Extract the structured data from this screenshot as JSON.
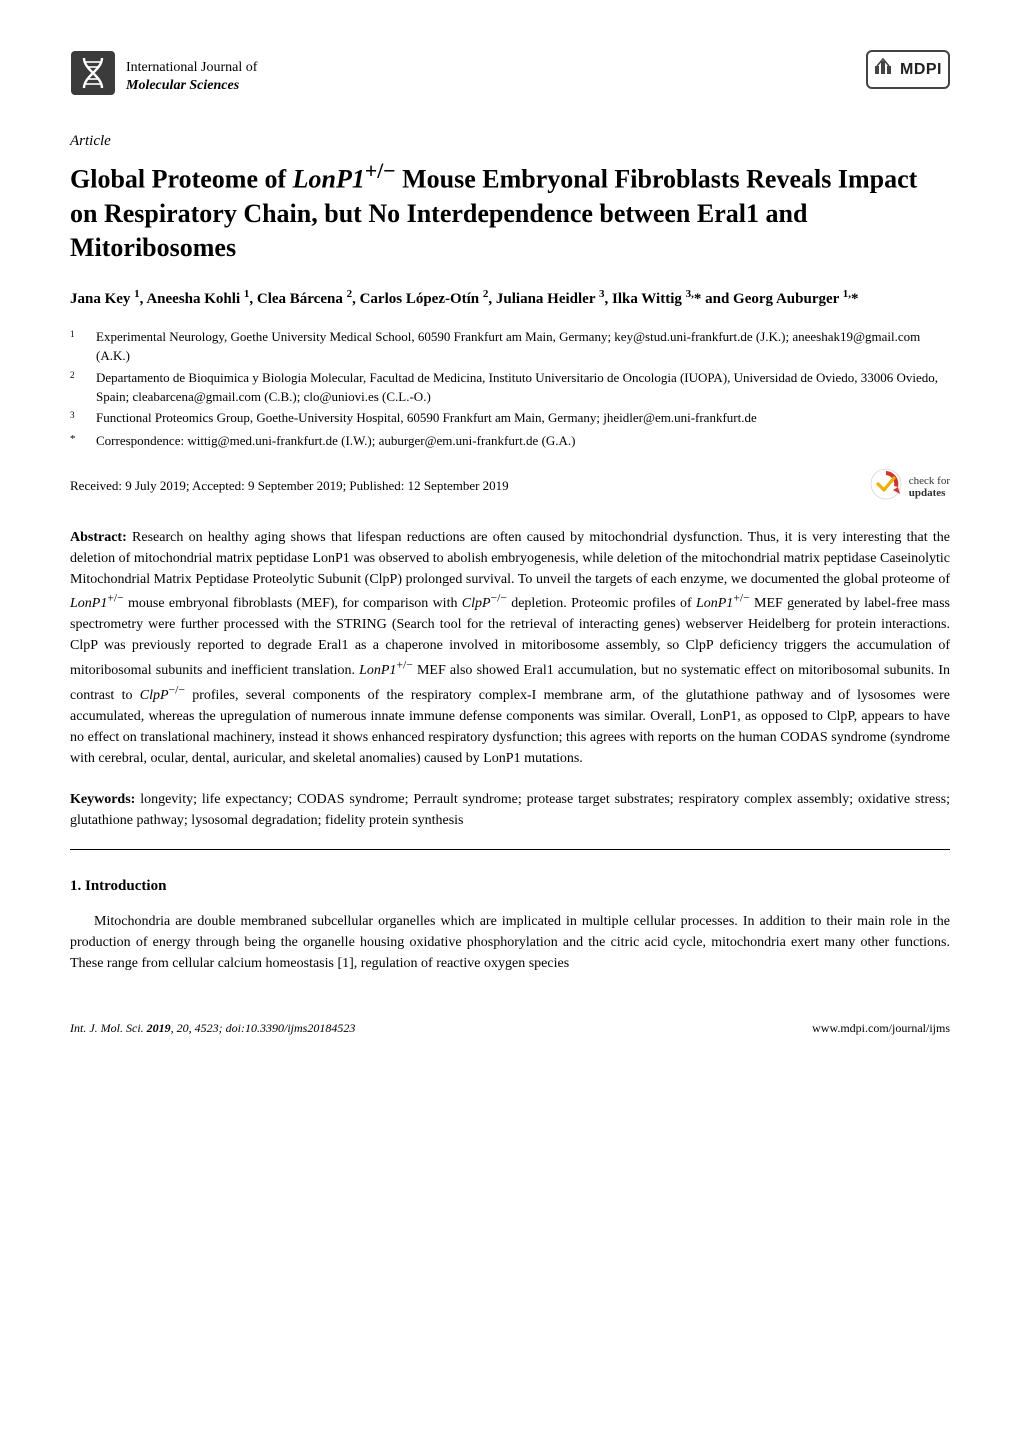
{
  "journal": {
    "line1": "International Journal of",
    "line2": "Molecular Sciences",
    "publisher": "MDPI"
  },
  "article_label": "Article",
  "title": "Global Proteome of LonP1+/− Mouse Embryonal Fibroblasts Reveals Impact on Respiratory Chain, but No Interdependence between Eral1 and Mitoribosomes",
  "title_html": "Global Proteome of <i>LonP1</i><sup>+/−</sup> Mouse Embryonal Fibroblasts Reveals Impact on Respiratory Chain, but No Interdependence between Eral1 and Mitoribosomes",
  "authors_html": "Jana Key <sup>1</sup>, Aneesha Kohli <sup>1</sup>, Clea Bárcena <sup>2</sup>, Carlos López-Otín <sup>2</sup>, Juliana Heidler <sup>3</sup>, Ilka Wittig <sup>3,</sup>* and Georg Auburger <sup>1,</sup>*",
  "affiliations": [
    {
      "marker": "1",
      "text": "Experimental Neurology, Goethe University Medical School, 60590 Frankfurt am Main, Germany; key@stud.uni-frankfurt.de (J.K.); aneeshak19@gmail.com (A.K.)"
    },
    {
      "marker": "2",
      "text": "Departamento de Bioquimica y Biologia Molecular, Facultad de Medicina, Instituto Universitario de Oncologia (IUOPA), Universidad de Oviedo, 33006 Oviedo, Spain; cleabarcena@gmail.com (C.B.); clo@uniovi.es (C.L.-O.)"
    },
    {
      "marker": "3",
      "text": "Functional Proteomics Group, Goethe-University Hospital, 60590 Frankfurt am Main, Germany; jheidler@em.uni-frankfurt.de"
    },
    {
      "marker": "*",
      "text": "Correspondence: wittig@med.uni-frankfurt.de (I.W.); auburger@em.uni-frankfurt.de (G.A.)"
    }
  ],
  "dates": "Received: 9 July 2019; Accepted: 9 September 2019; Published: 12 September 2019",
  "updates_badge": {
    "line1": "check for",
    "line2": "updates"
  },
  "abstract_label": "Abstract:",
  "abstract_html": "Research on healthy aging shows that lifespan reductions are often caused by mitochondrial dysfunction. Thus, it is very interesting that the deletion of mitochondrial matrix peptidase LonP1 was observed to abolish embryogenesis, while deletion of the mitochondrial matrix peptidase Caseinolytic Mitochondrial Matrix Peptidase Proteolytic Subunit (ClpP) prolonged survival. To unveil the targets of each enzyme, we documented the global proteome of <i>LonP1</i><sup>+/−</sup> mouse embryonal fibroblasts (MEF), for comparison with <i>ClpP</i><sup>−/−</sup> depletion. Proteomic profiles of <i>LonP1</i><sup>+/−</sup> MEF generated by label-free mass spectrometry were further processed with the STRING (Search tool for the retrieval of interacting genes) webserver Heidelberg for protein interactions. ClpP was previously reported to degrade Eral1 as a chaperone involved in mitoribosome assembly, so ClpP deficiency triggers the accumulation of mitoribosomal subunits and inefficient translation. <i>LonP1</i><sup>+/−</sup> MEF also showed Eral1 accumulation, but no systematic effect on mitoribosomal subunits. In contrast to <i>ClpP</i><sup>−/−</sup> profiles, several components of the respiratory complex-I membrane arm, of the glutathione pathway and of lysosomes were accumulated, whereas the upregulation of numerous innate immune defense components was similar. Overall, LonP1, as opposed to ClpP, appears to have no effect on translational machinery, instead it shows enhanced respiratory dysfunction; this agrees with reports on the human CODAS syndrome (syndrome with cerebral, ocular, dental, auricular, and skeletal anomalies) caused by LonP1 mutations.",
  "keywords_label": "Keywords:",
  "keywords": "longevity; life expectancy; CODAS syndrome; Perrault syndrome; protease target substrates; respiratory complex assembly; oxidative stress; glutathione pathway; lysosomal degradation; fidelity protein synthesis",
  "section1_heading": "1. Introduction",
  "section1_body": "Mitochondria are double membraned subcellular organelles which are implicated in multiple cellular processes. In addition to their main role in the production of energy through being the organelle housing oxidative phosphorylation and the citric acid cycle, mitochondria exert many other functions. These range from cellular calcium homeostasis [1], regulation of reactive oxygen species",
  "footer": {
    "left_html": "<i>Int. J. Mol. Sci.</i> <b>2019</b>, <i>20</i>, 4523; doi:10.3390/ijms20184523",
    "right": "www.mdpi.com/journal/ijms"
  },
  "colors": {
    "text": "#000000",
    "background": "#ffffff",
    "logo_box": "#3b3b3b",
    "badge_arrow": "#d9322e",
    "badge_check": "#f0b000"
  }
}
